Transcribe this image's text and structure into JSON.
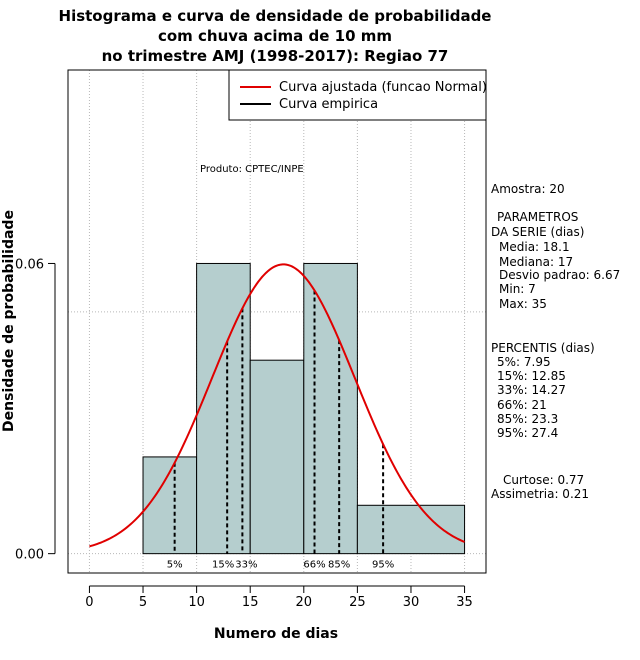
{
  "chart_data": {
    "type": "bar",
    "title_lines": [
      "Histograma e curva de densidade de probabilidade",
      "com chuva acima de 10 mm",
      "no trimestre AMJ (1998-2017): Regiao 77"
    ],
    "xlabel": "Numero de dias",
    "ylabel": "Densidade de probabilidade",
    "xlim": [
      -2,
      37
    ],
    "ylim": [
      -0.004,
      0.1
    ],
    "x_ticks": [
      "0",
      "5",
      "10",
      "15",
      "20",
      "25",
      "30",
      "35"
    ],
    "x_tick_values": [
      0,
      5,
      10,
      15,
      20,
      25,
      30,
      35
    ],
    "y_ticks": [
      "0.00",
      "0.06"
    ],
    "y_tick_values": [
      0.0,
      0.06
    ],
    "grid": true,
    "bins": [
      {
        "from": 5,
        "to": 10,
        "density": 0.02
      },
      {
        "from": 10,
        "to": 15,
        "density": 0.06
      },
      {
        "from": 15,
        "to": 20,
        "density": 0.04
      },
      {
        "from": 20,
        "to": 25,
        "density": 0.06
      },
      {
        "from": 25,
        "to": 35,
        "density": 0.01
      }
    ],
    "normal_curve": {
      "mean": 18.1,
      "sd": 6.67,
      "x_from": 0,
      "x_to": 35
    },
    "percentiles": [
      {
        "label": "5%",
        "value": 7.95
      },
      {
        "label": "15%",
        "value": 12.85
      },
      {
        "label": "33%",
        "value": 14.27
      },
      {
        "label": "66%",
        "value": 21
      },
      {
        "label": "85%",
        "value": 23.3
      },
      {
        "label": "95%",
        "value": 27.4
      }
    ],
    "legend": {
      "position": "top-right",
      "entries": [
        {
          "label": "Curva ajustada (funcao Normal)",
          "color": "#e00000"
        },
        {
          "label": "Curva empirica",
          "color": "#000000"
        }
      ]
    },
    "annotation": "Produto: CPTEC/INPE",
    "colors": {
      "bar_fill": "#b5cece",
      "curve": "#e00000"
    }
  },
  "side_panel": {
    "amostra": "Amostra: 20",
    "param_title_1": "PARAMETROS",
    "param_title_2": "DA SERIE (dias)",
    "media": "Media: 18.1",
    "mediana": "Mediana: 17",
    "desvio": "Desvio padrao: 6.67",
    "min": "Min: 7",
    "max": "Max: 35",
    "percentis_title": "PERCENTIS (dias)",
    "p5": "5%: 7.95",
    "p15": "15%: 12.85",
    "p33": "33%: 14.27",
    "p66": "66%: 21",
    "p85": "85%: 23.3",
    "p95": "95%: 27.4",
    "curtose": "Curtose: 0.77",
    "assimetria": "Assimetria: 0.21"
  }
}
